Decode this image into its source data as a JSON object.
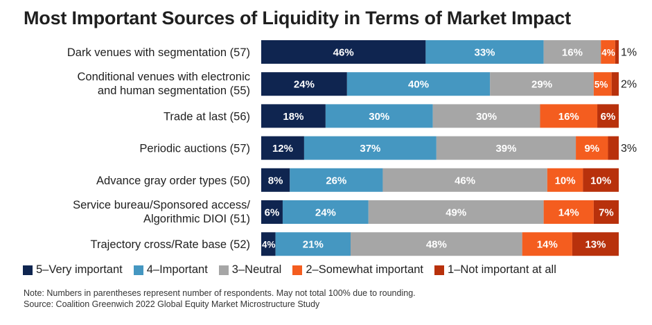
{
  "chart_data": {
    "type": "bar",
    "orientation": "horizontal",
    "stacked": true,
    "title": "Most Important Sources of Liquidity in Terms of Market Impact",
    "categories": [
      [
        "Dark venues with segmentation (57)"
      ],
      [
        "Conditional venues with electronic",
        "and human segmentation (55)"
      ],
      [
        "Trade at last (56)"
      ],
      [
        "Periodic auctions (57)"
      ],
      [
        "Advance gray order types (50)"
      ],
      [
        "Service bureau/Sponsored access/",
        "Algorithmic DIOI (51)"
      ],
      [
        "Trajectory cross/Rate base (52)"
      ]
    ],
    "series": [
      {
        "name": "5–Very important",
        "color": "#0f2550",
        "values": [
          46,
          24,
          18,
          12,
          8,
          6,
          4
        ]
      },
      {
        "name": "4–Important",
        "color": "#4597c1",
        "values": [
          33,
          40,
          30,
          37,
          26,
          24,
          21
        ]
      },
      {
        "name": "3–Neutral",
        "color": "#a6a6a6",
        "values": [
          16,
          29,
          30,
          39,
          46,
          49,
          48
        ]
      },
      {
        "name": "2–Somewhat important",
        "color": "#f45d1f",
        "values": [
          4,
          5,
          16,
          9,
          10,
          14,
          14
        ]
      },
      {
        "name": "1–Not important at all",
        "color": "#b8310c",
        "values": [
          1,
          2,
          6,
          3,
          10,
          7,
          13
        ]
      }
    ],
    "value_suffix": "%",
    "legend_position": "bottom",
    "grid": false
  },
  "notes": [
    "Note: Numbers in parentheses represent number of respondents. May not total 100% due to rounding.",
    "Source: Coalition Greenwich 2022 Global Equity Market Microstructure Study"
  ]
}
